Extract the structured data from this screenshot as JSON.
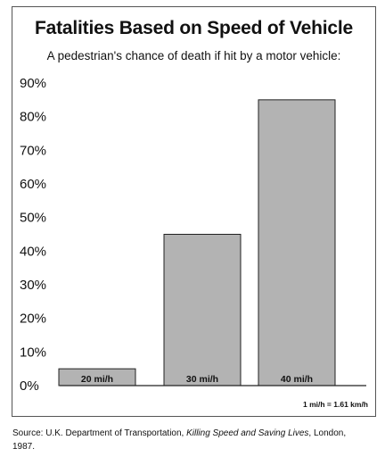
{
  "chart_data": {
    "type": "bar",
    "title": "Fatalities Based on Speed of Vehicle",
    "subtitle": "A pedestrian's chance of death if hit by a motor vehicle:",
    "categories": [
      "20 mi/h",
      "30 mi/h",
      "40 mi/h"
    ],
    "values": [
      5,
      45,
      85
    ],
    "unit": "%",
    "ylim": [
      0,
      90
    ],
    "yticks": [
      0,
      10,
      20,
      30,
      40,
      50,
      60,
      70,
      80,
      90
    ],
    "ytick_labels": [
      "0%",
      "10%",
      "20%",
      "30%",
      "40%",
      "50%",
      "60%",
      "70%",
      "80%",
      "90%"
    ],
    "grid": false,
    "bar_color": "#b3b3b3",
    "bar_edge_color": "#222222",
    "conversion_note": "1 mi/h = 1.61 km/h"
  },
  "source": {
    "prefix": "Source: U.K. Department of Transportation, ",
    "work_title": "Killing Speed and Saving Lives",
    "suffix": ", London, 1987."
  }
}
